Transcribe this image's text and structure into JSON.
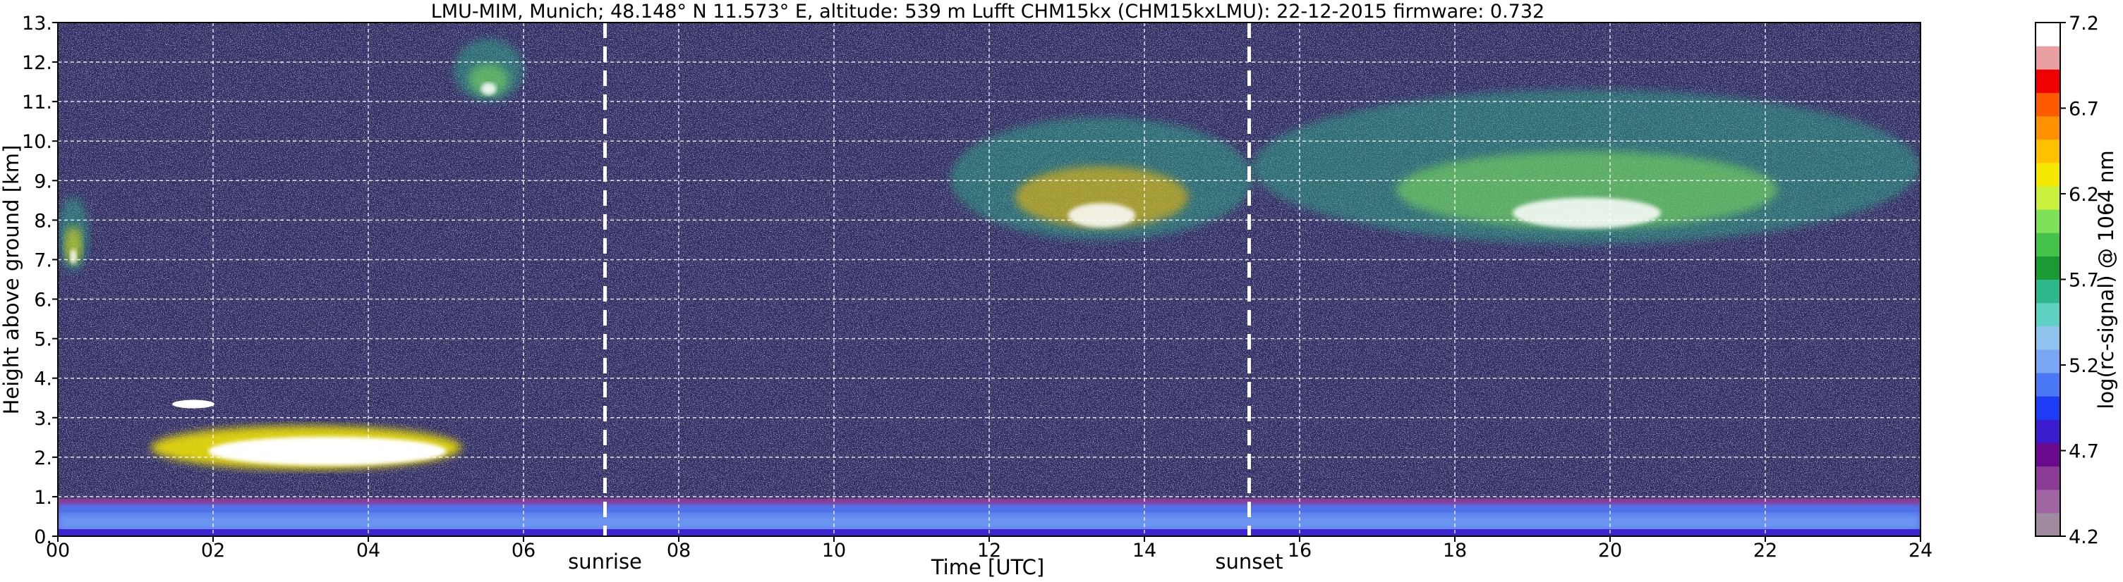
{
  "chart_data": {
    "type": "heatmap",
    "title": "LMU-MIM, Munich; 48.148° N 11.573° E, altitude: 539 m    Lufft CHM15kx (CHM15kxLMU): 22-12-2015    firmware: 0.732",
    "xlabel": "Time [UTC]",
    "ylabel": "Height above ground [km]",
    "colorbar_label": "log(rc-signal) @ 1064 nm",
    "xlim": [
      0,
      24
    ],
    "ylim": [
      0,
      13
    ],
    "x_ticks": [
      "00",
      "02",
      "04",
      "06",
      "08",
      "10",
      "12",
      "14",
      "16",
      "18",
      "20",
      "22",
      "24"
    ],
    "y_ticks": [
      "0.",
      "1.",
      "2.",
      "3.",
      "4.",
      "5.",
      "6.",
      "7.",
      "8.",
      "9.",
      "10.",
      "11.",
      "12.",
      "13."
    ],
    "colorbar_range": [
      4.2,
      7.2
    ],
    "colorbar_ticks": [
      "7.2",
      "6.7",
      "6.2",
      "5.7",
      "5.2",
      "4.7",
      "4.2"
    ],
    "grid": true,
    "events": [
      {
        "label": "sunrise",
        "time_utc": 7.05
      },
      {
        "label": "sunset",
        "time_utc": 15.35
      }
    ],
    "features": [
      {
        "kind": "boundary layer aerosol",
        "t_start": 0,
        "t_end": 24,
        "h_bottom": 0.0,
        "h_top": 0.95,
        "level": 5.1
      },
      {
        "kind": "low cloud",
        "t_start": 1.2,
        "t_end": 5.2,
        "h_bottom": 1.5,
        "h_top": 3.7,
        "level": 7.2
      },
      {
        "kind": "cirrus",
        "t_start": 0.0,
        "t_end": 0.4,
        "h_bottom": 6.7,
        "h_top": 8.6,
        "level": 6.3
      },
      {
        "kind": "cirrus",
        "t_start": 5.1,
        "t_end": 6.0,
        "h_bottom": 11.0,
        "h_top": 12.6,
        "level": 6.0
      },
      {
        "kind": "cirrus",
        "t_start": 11.5,
        "t_end": 15.4,
        "h_bottom": 7.5,
        "h_top": 10.6,
        "level": 6.5
      },
      {
        "kind": "cirrus",
        "t_start": 15.4,
        "t_end": 24.0,
        "h_bottom": 7.4,
        "h_top": 11.3,
        "level": 6.0
      }
    ]
  },
  "colors": {
    "background_noise": "#2e2a5e",
    "colormap": [
      "#a08aa0",
      "#a066a3",
      "#8a3c95",
      "#6a0a8f",
      "#3c1ccf",
      "#1e3cf5",
      "#4a78f5",
      "#7aa6f5",
      "#90c4ef",
      "#5ed1c3",
      "#2eb68c",
      "#1b9a33",
      "#45c24a",
      "#7fe05a",
      "#c8f03c",
      "#f5e800",
      "#ffc000",
      "#ff9000",
      "#ff5a00",
      "#f00000",
      "#e8a0a0",
      "#ffffff"
    ]
  }
}
